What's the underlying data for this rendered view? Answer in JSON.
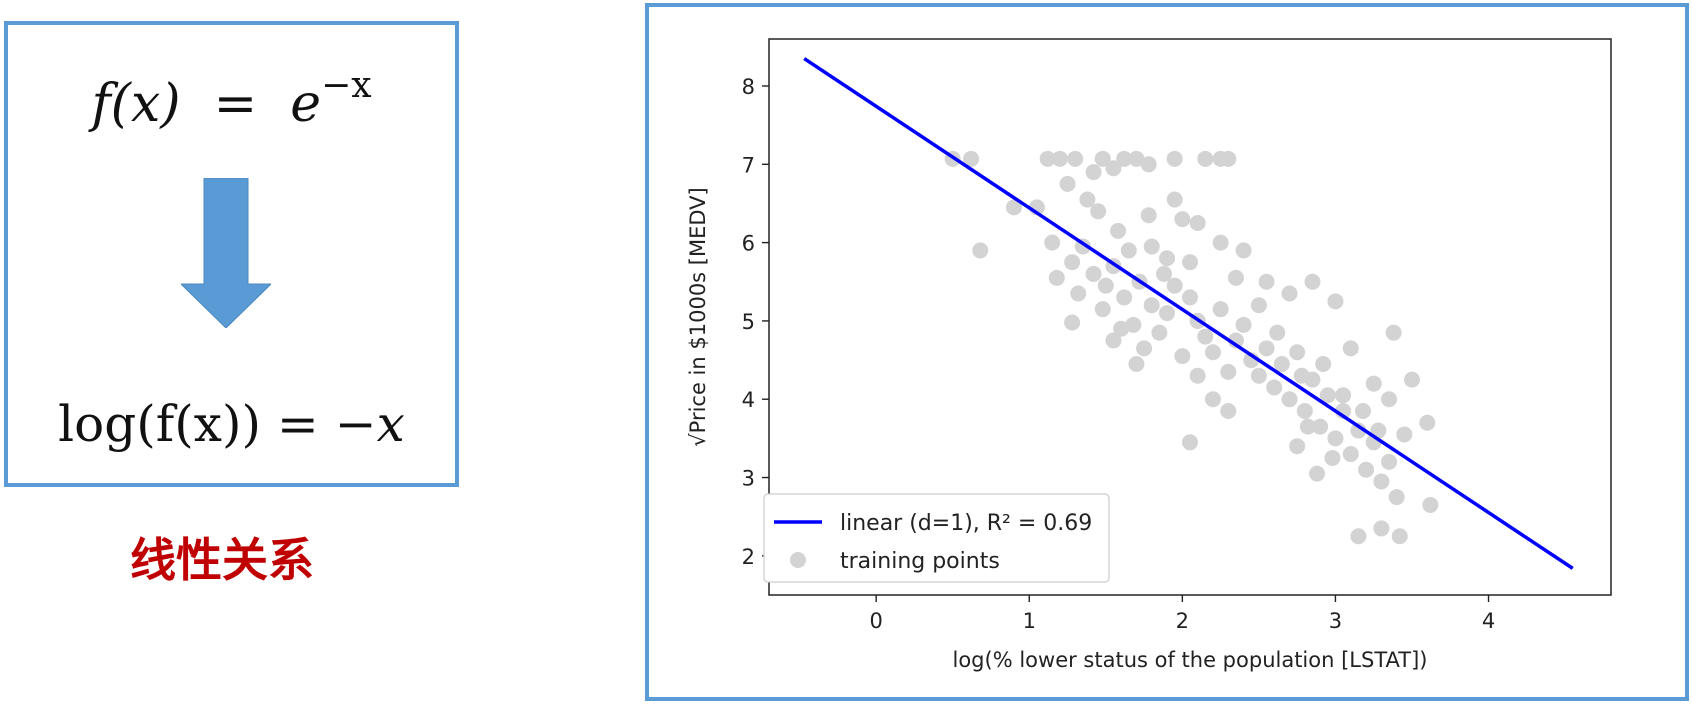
{
  "left_panel": {
    "formula_top": {
      "lhs": "f(x)",
      "equals": "=",
      "base": "e",
      "exponent": "−x"
    },
    "formula_bottom": {
      "lhs": "log(f(x))",
      "equals": "=",
      "rhs": "−x"
    },
    "caption": "线性关系",
    "colors": {
      "box_border": "#5b9bd5",
      "arrow": "#5b9bd5",
      "caption": "#c00000"
    },
    "icons": {
      "arrow": "down-arrow-icon"
    }
  },
  "chart_data": {
    "type": "scatter",
    "title": "",
    "xlabel": "log(% lower status of the population [LSTAT])",
    "ylabel": "√Price in $1000s [MEDV]",
    "xlim": [
      -0.7,
      4.8
    ],
    "ylim": [
      1.5,
      8.6
    ],
    "xticks": [
      0,
      1,
      2,
      3,
      4
    ],
    "yticks": [
      2,
      3,
      4,
      5,
      6,
      7,
      8
    ],
    "grid": false,
    "legend_position": "lower-left",
    "series": [
      {
        "name": "linear (d=1), R² = 0.69",
        "kind": "line",
        "color": "#0000ff",
        "x": [
          -0.47,
          4.55
        ],
        "y": [
          8.35,
          1.84
        ]
      },
      {
        "name": "training points",
        "kind": "scatter",
        "color": "#d3d3d3",
        "points": [
          [
            0.5,
            7.07
          ],
          [
            0.62,
            7.07
          ],
          [
            0.68,
            5.9
          ],
          [
            0.9,
            6.45
          ],
          [
            1.05,
            6.45
          ],
          [
            1.12,
            7.07
          ],
          [
            1.2,
            7.07
          ],
          [
            1.3,
            7.07
          ],
          [
            1.15,
            6.0
          ],
          [
            1.28,
            5.75
          ],
          [
            1.18,
            5.55
          ],
          [
            1.35,
            5.95
          ],
          [
            1.42,
            6.9
          ],
          [
            1.48,
            7.07
          ],
          [
            1.55,
            6.95
          ],
          [
            1.62,
            7.07
          ],
          [
            1.7,
            7.07
          ],
          [
            1.78,
            7.0
          ],
          [
            1.32,
            5.35
          ],
          [
            1.28,
            4.98
          ],
          [
            1.38,
            6.55
          ],
          [
            1.25,
            6.75
          ],
          [
            1.45,
            6.4
          ],
          [
            1.58,
            6.15
          ],
          [
            1.65,
            5.9
          ],
          [
            1.55,
            5.7
          ],
          [
            1.5,
            5.45
          ],
          [
            1.62,
            5.3
          ],
          [
            1.48,
            5.15
          ],
          [
            1.72,
            5.5
          ],
          [
            1.8,
            5.2
          ],
          [
            1.68,
            4.95
          ],
          [
            1.85,
            4.85
          ],
          [
            1.75,
            4.65
          ],
          [
            1.9,
            5.1
          ],
          [
            1.95,
            5.45
          ],
          [
            2.05,
            5.3
          ],
          [
            2.1,
            5.0
          ],
          [
            2.15,
            4.8
          ],
          [
            2.0,
            4.55
          ],
          [
            2.2,
            4.6
          ],
          [
            2.25,
            5.15
          ],
          [
            2.3,
            4.35
          ],
          [
            2.35,
            4.75
          ],
          [
            2.4,
            4.95
          ],
          [
            2.45,
            4.5
          ],
          [
            2.5,
            4.3
          ],
          [
            2.55,
            4.65
          ],
          [
            2.6,
            4.15
          ],
          [
            2.65,
            4.45
          ],
          [
            2.7,
            4.0
          ],
          [
            2.75,
            4.6
          ],
          [
            2.8,
            3.85
          ],
          [
            2.85,
            4.25
          ],
          [
            2.9,
            3.65
          ],
          [
            2.95,
            4.05
          ],
          [
            3.0,
            3.5
          ],
          [
            3.05,
            3.85
          ],
          [
            3.1,
            3.3
          ],
          [
            3.15,
            3.6
          ],
          [
            3.2,
            3.1
          ],
          [
            3.25,
            3.45
          ],
          [
            3.3,
            2.95
          ],
          [
            3.35,
            3.2
          ],
          [
            3.4,
            2.75
          ],
          [
            3.45,
            3.55
          ],
          [
            3.5,
            4.25
          ],
          [
            3.6,
            3.7
          ],
          [
            3.62,
            2.65
          ],
          [
            3.15,
            2.25
          ],
          [
            3.3,
            2.35
          ],
          [
            3.42,
            2.25
          ],
          [
            3.38,
            4.85
          ],
          [
            3.25,
            4.2
          ],
          [
            3.1,
            4.65
          ],
          [
            3.0,
            5.25
          ],
          [
            2.85,
            5.5
          ],
          [
            2.7,
            5.35
          ],
          [
            2.55,
            5.5
          ],
          [
            2.4,
            5.9
          ],
          [
            2.25,
            6.0
          ],
          [
            2.1,
            6.25
          ],
          [
            1.95,
            6.55
          ],
          [
            2.0,
            6.3
          ],
          [
            2.15,
            7.07
          ],
          [
            2.25,
            7.07
          ],
          [
            2.3,
            7.07
          ],
          [
            1.95,
            7.07
          ],
          [
            1.8,
            5.95
          ],
          [
            1.88,
            5.6
          ],
          [
            2.05,
            5.75
          ],
          [
            2.1,
            4.3
          ],
          [
            2.2,
            4.0
          ],
          [
            2.3,
            3.85
          ],
          [
            2.05,
            3.45
          ],
          [
            2.35,
            5.55
          ],
          [
            2.5,
            5.2
          ],
          [
            2.62,
            4.85
          ],
          [
            2.78,
            4.3
          ],
          [
            2.92,
            4.45
          ],
          [
            3.05,
            4.05
          ],
          [
            3.18,
            3.85
          ],
          [
            3.28,
            3.6
          ],
          [
            3.35,
            4.0
          ],
          [
            2.98,
            3.25
          ],
          [
            2.88,
            3.05
          ],
          [
            2.75,
            3.4
          ],
          [
            2.82,
            3.65
          ],
          [
            1.55,
            4.75
          ],
          [
            1.7,
            4.45
          ],
          [
            1.6,
            4.9
          ],
          [
            1.42,
            5.6
          ],
          [
            1.78,
            6.35
          ],
          [
            1.9,
            5.8
          ]
        ]
      }
    ]
  }
}
